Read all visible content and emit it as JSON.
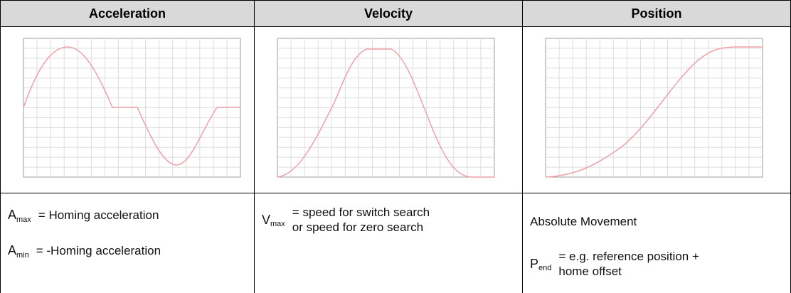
{
  "table": {
    "headers": [
      "Acceleration",
      "Velocity",
      "Position"
    ],
    "col1": [
      {
        "symbol": "A",
        "sub": "max",
        "text": "= Homing acceleration"
      },
      {
        "symbol": "A",
        "sub": "min",
        "text": "= -Homing acceleration"
      }
    ],
    "col2": {
      "symbol": "V",
      "sub": "max",
      "lines": [
        "= speed for switch search",
        "or speed for zero search"
      ]
    },
    "col3": {
      "heading": "Absolute Movement",
      "symbol": "P",
      "sub": "end",
      "lines": [
        "= e.g. reference position +",
        "home offset"
      ]
    }
  }
}
